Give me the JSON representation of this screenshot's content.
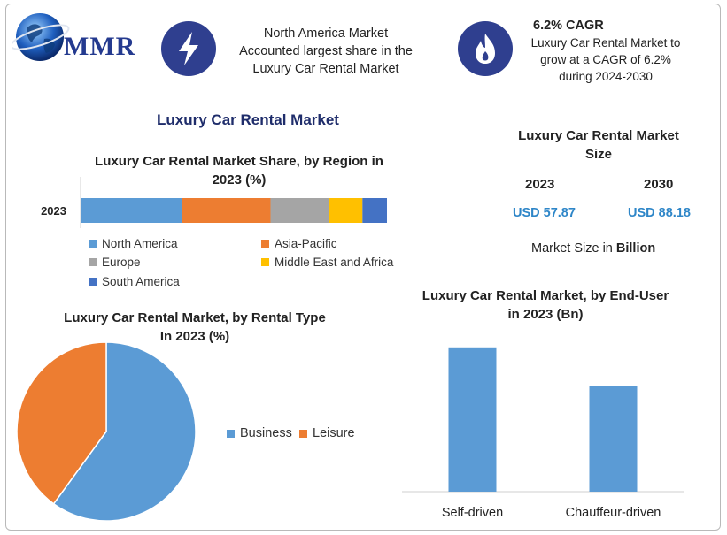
{
  "header": {
    "logo_text": "MMR",
    "box1_lines": [
      "North America Market",
      "Accounted largest share in the",
      "Luxury Car Rental Market"
    ],
    "box2_title": "6.2% CAGR",
    "box2_lines": [
      "Luxury Car Rental Market to",
      "grow at a CAGR of 6.2%",
      "during 2024-2030"
    ]
  },
  "main_title": "Luxury Car Rental Market",
  "market_size": {
    "title_lines": [
      "Luxury Car Rental Market",
      "Size"
    ],
    "year1": "2023",
    "year2": "2030",
    "value1": "USD 57.87",
    "value2": "USD 88.18",
    "note_prefix": "Market Size in ",
    "note_bold": "Billion"
  },
  "colors": {
    "north_america": "#5b9bd5",
    "asia_pacific": "#ed7d31",
    "europe": "#a5a5a5",
    "mea": "#ffc000",
    "south_america": "#4472c4",
    "icon_circle": "#2f3f8f"
  },
  "chart_data": [
    {
      "type": "bar",
      "orientation": "horizontal-stacked",
      "title_lines": [
        "Luxury Car Rental Market Share, by Region in",
        "2023 (%)"
      ],
      "categories": [
        "2023"
      ],
      "series": [
        {
          "name": "North America",
          "values": [
            33
          ]
        },
        {
          "name": "Asia-Pacific",
          "values": [
            29
          ]
        },
        {
          "name": "Europe",
          "values": [
            19
          ]
        },
        {
          "name": "Middle East and Africa",
          "values": [
            11
          ]
        },
        {
          "name": "South America",
          "values": [
            8
          ]
        }
      ],
      "xlim": [
        0,
        100
      ],
      "legend": "bottom"
    },
    {
      "type": "pie",
      "title_lines": [
        "Luxury Car Rental Market, by Rental Type",
        "In 2023 (%)"
      ],
      "categories": [
        "Business",
        "Leisure"
      ],
      "values": [
        60,
        40
      ],
      "legend": "right"
    },
    {
      "type": "bar",
      "title_lines": [
        "Luxury Car Rental Market, by End-User",
        "in 2023 (Bn)"
      ],
      "categories": [
        "Self-driven",
        "Chauffeur-driven"
      ],
      "values": [
        34,
        25
      ],
      "ylim": [
        0,
        40
      ]
    }
  ]
}
